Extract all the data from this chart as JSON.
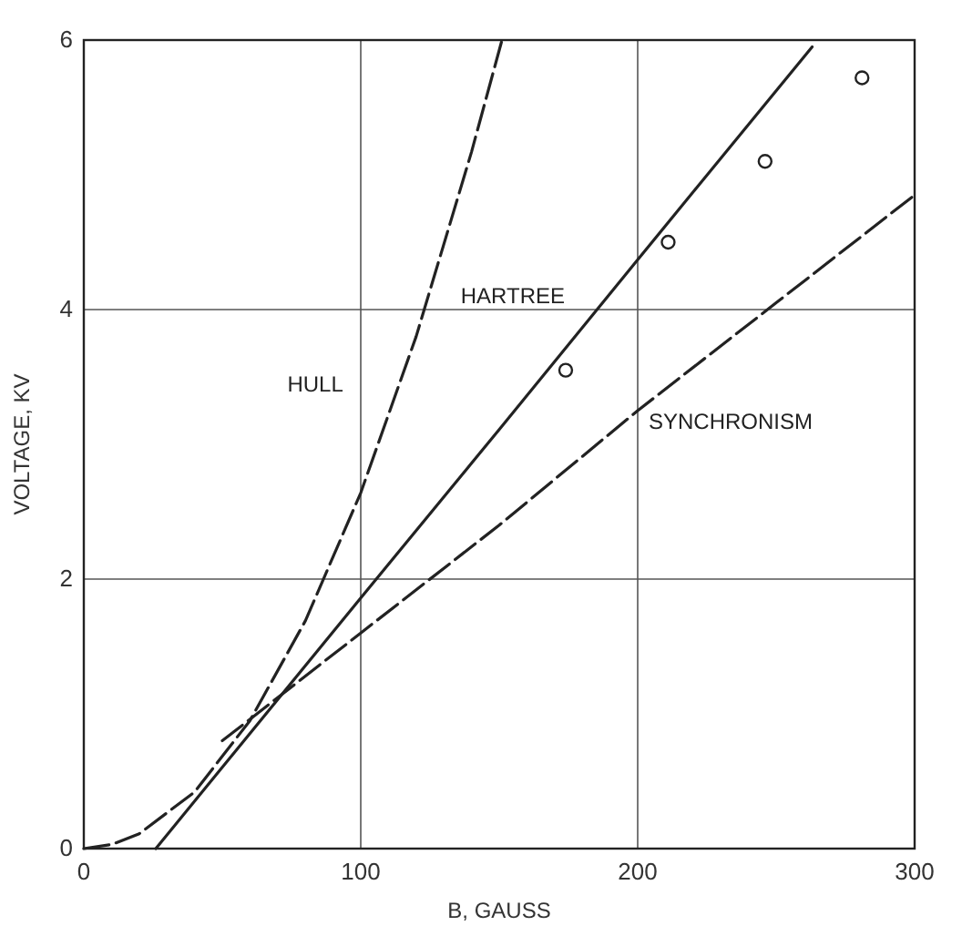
{
  "chart_data": {
    "type": "line",
    "xlabel": "B, GAUSS",
    "ylabel": "VOLTAGE, KV",
    "xlim": [
      0,
      300
    ],
    "ylim": [
      0,
      6
    ],
    "xticks": [
      0,
      100,
      200,
      300
    ],
    "yticks": [
      0,
      2,
      4,
      6
    ],
    "grid": true,
    "series": [
      {
        "name": "HULL",
        "color": "#222222",
        "line_style": "dashed",
        "x": [
          0,
          10,
          20,
          40,
          60,
          80,
          100,
          120,
          140,
          151
        ],
        "values": [
          0,
          0.03,
          0.11,
          0.42,
          0.95,
          1.69,
          2.64,
          3.8,
          5.17,
          6.0
        ]
      },
      {
        "name": "HARTREE",
        "color": "#222222",
        "line_style": "solid",
        "x": [
          26,
          100,
          150,
          200,
          263
        ],
        "values": [
          0,
          1.86,
          3.11,
          4.37,
          5.95
        ]
      },
      {
        "name": "SYNCHRONISM",
        "color": "#222222",
        "line_style": "dashed",
        "x": [
          50,
          100,
          150,
          200,
          250,
          300
        ],
        "values": [
          0.8,
          1.6,
          2.4,
          3.25,
          4.05,
          4.85
        ]
      },
      {
        "type": "scatter",
        "color": "#222222",
        "marker": "circle",
        "x": [
          174,
          211,
          246,
          281
        ],
        "values": [
          3.55,
          4.5,
          5.1,
          5.72
        ]
      }
    ]
  }
}
